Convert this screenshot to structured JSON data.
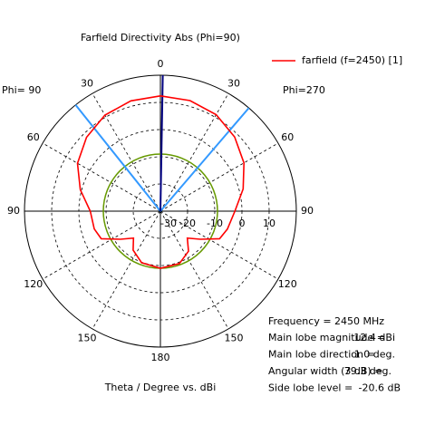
{
  "chart_data": {
    "type": "polar",
    "title": "Farfield Directivity Abs (Phi=90)",
    "left_label": "Phi= 90",
    "right_label": "Phi=270",
    "axis_label": "Theta / Degree vs. dBi",
    "rlim": [
      -30,
      20
    ],
    "rticks": [
      -30,
      -20,
      -10,
      0,
      10
    ],
    "thetaticks": [
      {
        "value": 0,
        "label": "0"
      },
      {
        "value": 30,
        "label": "30"
      },
      {
        "value": 60,
        "label": "60"
      },
      {
        "value": 90,
        "label": "90"
      },
      {
        "value": 120,
        "label": "120"
      },
      {
        "value": 150,
        "label": "150"
      },
      {
        "value": 180,
        "label": "180"
      },
      {
        "value": 210,
        "label": "150"
      },
      {
        "value": 240,
        "label": "120"
      },
      {
        "value": 270,
        "label": "90"
      },
      {
        "value": 300,
        "label": "60"
      },
      {
        "value": 330,
        "label": "30"
      }
    ],
    "grid": true,
    "series": [
      {
        "name": "farfield (f=2450) [1]",
        "color": "#ff0000",
        "theta": [
          0,
          15,
          30,
          45,
          60,
          75,
          90,
          105,
          115,
          125,
          135,
          145,
          160,
          180,
          200,
          215,
          225,
          235,
          245,
          255,
          270,
          285,
          300,
          315,
          330,
          345,
          360
        ],
        "values": [
          12.4,
          12.1,
          11,
          8.6,
          5.5,
          1.5,
          -2.6,
          -4.5,
          -6,
          -12,
          -16,
          -12,
          -9.5,
          -9,
          -9.8,
          -12.5,
          -16,
          -12,
          -6,
          -4.8,
          -4.2,
          0.5,
          5.2,
          8.4,
          10.8,
          12,
          12.4
        ]
      }
    ],
    "reference_circle": {
      "value": -9,
      "color": "#669900"
    },
    "main_lobe_line": {
      "theta": 1.0,
      "color": "#000080"
    },
    "beam_lines": {
      "theta": [
        -38.6,
        40.6
      ],
      "color": "#3399ff"
    },
    "info": {
      "frequency": "Frequency = 2450 MHz",
      "rows": [
        [
          "Main lobe magnitude =",
          "12.4 dBi"
        ],
        [
          "Main lobe direction =",
          "1.0 deg."
        ],
        [
          "Angular width (3 dB) =",
          "79.3 deg."
        ],
        [
          "Side lobe level =",
          "-20.6 dB"
        ]
      ]
    }
  }
}
